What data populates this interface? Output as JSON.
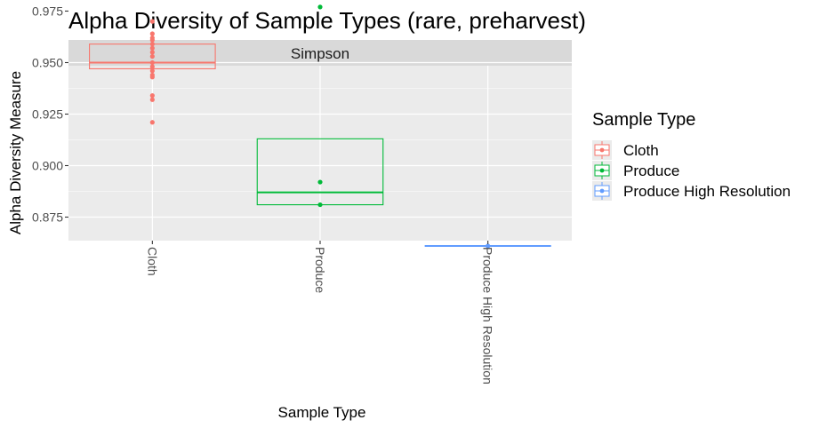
{
  "chart_data": {
    "type": "box",
    "title": "Alpha Diversity of Sample Types (rare, preharvest)",
    "facet_label": "Simpson",
    "xlabel": "Sample Type",
    "ylabel": "Alpha Diversity Measure",
    "categories": [
      "Cloth",
      "Produce",
      "Produce High Resolution"
    ],
    "ylim": [
      0.857,
      0.988
    ],
    "yticks": [
      0.875,
      0.9,
      0.925,
      0.95,
      0.975
    ],
    "ytick_labels": [
      "0.875",
      "0.900",
      "0.925",
      "0.950",
      "0.975"
    ],
    "grid": true,
    "legend": {
      "title": "Sample Type",
      "placement": "right",
      "entries": [
        "Cloth",
        "Produce",
        "Produce High Resolution"
      ]
    },
    "colors": {
      "Cloth": "#F8766D",
      "Produce": "#00BA38",
      "Produce High Resolution": "#619CFF",
      "panel_bg": "#EBEBEB",
      "strip_bg": "#D9D9D9",
      "grid": "#FFFFFF"
    },
    "series": [
      {
        "name": "Cloth",
        "box": {
          "q1": 0.947,
          "median": 0.95,
          "q3": 0.959
        },
        "points": [
          0.97,
          0.964,
          0.962,
          0.961,
          0.959,
          0.957,
          0.955,
          0.953,
          0.95,
          0.948,
          0.946,
          0.944,
          0.943,
          0.934,
          0.932,
          0.921
        ]
      },
      {
        "name": "Produce",
        "box": {
          "q1": 0.881,
          "median": 0.887,
          "q3": 0.913
        },
        "points": [
          0.977,
          0.892,
          0.881
        ]
      },
      {
        "name": "Produce High Resolution",
        "box": {
          "q1": 0.861,
          "median": 0.861,
          "q3": 0.861
        },
        "points": [
          0.861
        ]
      }
    ]
  }
}
